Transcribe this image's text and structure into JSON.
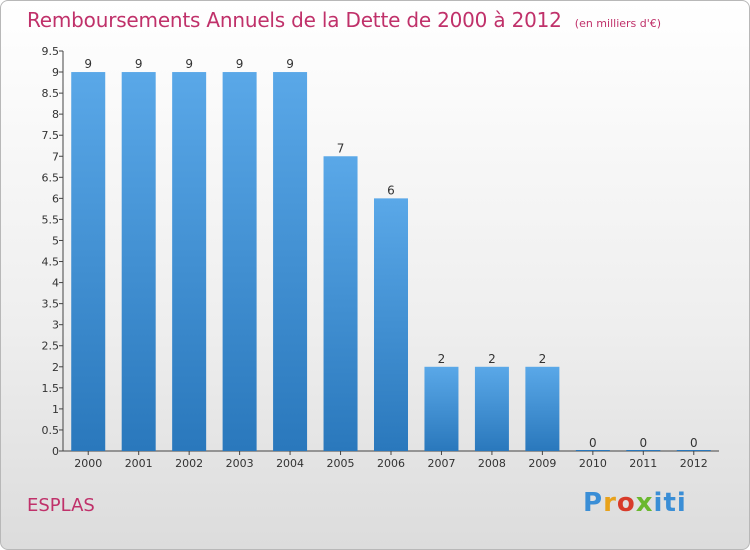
{
  "header": {
    "title": "Remboursements Annuels de la Dette de 2000 à 2012",
    "unit": "(en milliers d'€)"
  },
  "footer": {
    "commune": "ESPLAS",
    "logo": "Proxiti"
  },
  "colors": {
    "title": "#c0316a",
    "bar_top": "#5aa8e8",
    "bar_bottom": "#2a78bc"
  },
  "chart_data": {
    "type": "bar",
    "categories": [
      "2000",
      "2001",
      "2002",
      "2003",
      "2004",
      "2005",
      "2006",
      "2007",
      "2008",
      "2009",
      "2010",
      "2011",
      "2012"
    ],
    "values": [
      9,
      9,
      9,
      9,
      9,
      7,
      6,
      2,
      2,
      2,
      0,
      0,
      0
    ],
    "data_labels": [
      "9",
      "9",
      "9",
      "9",
      "9",
      "7",
      "6",
      "2",
      "2",
      "2",
      "0",
      "0",
      "0"
    ],
    "yticks": [
      "0",
      "0.5",
      "1",
      "1.5",
      "2",
      "2.5",
      "3",
      "3.5",
      "4",
      "4.5",
      "5",
      "5.5",
      "6",
      "6.5",
      "7",
      "7.5",
      "8",
      "8.5",
      "9",
      "9.5"
    ],
    "ylim": [
      0,
      9.5
    ],
    "grid": false,
    "title": "Remboursements Annuels de la Dette de 2000 à 2012",
    "xlabel": "",
    "ylabel": ""
  }
}
